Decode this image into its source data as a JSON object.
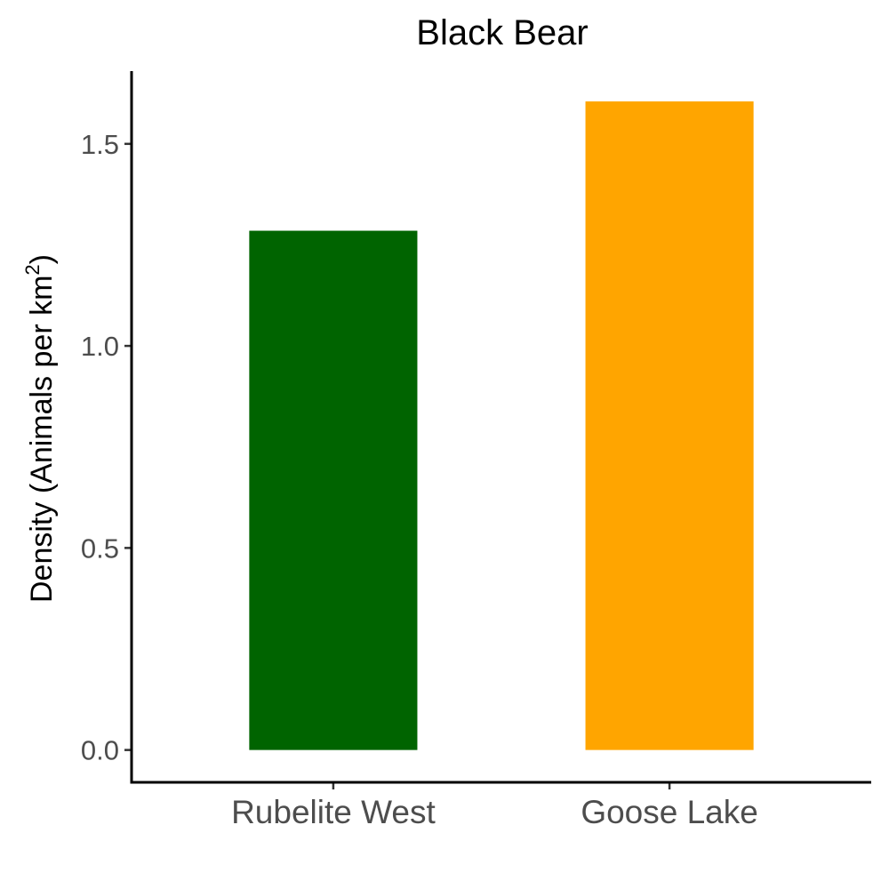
{
  "chart_data": {
    "type": "bar",
    "title": "Black Bear",
    "xlabel": "",
    "ylabel": {
      "main": "Density (Animals per km",
      "superscript": "2",
      "close": ")"
    },
    "categories": [
      "Rubelite West",
      "Goose Lake"
    ],
    "values": [
      1.285,
      1.605
    ],
    "colors": [
      "#006400",
      "#FFA500"
    ],
    "yticks": [
      "0.0",
      "0.5",
      "1.0",
      "1.5"
    ],
    "ylim": [
      -0.08,
      1.68
    ],
    "grid": false,
    "legend": "none"
  }
}
